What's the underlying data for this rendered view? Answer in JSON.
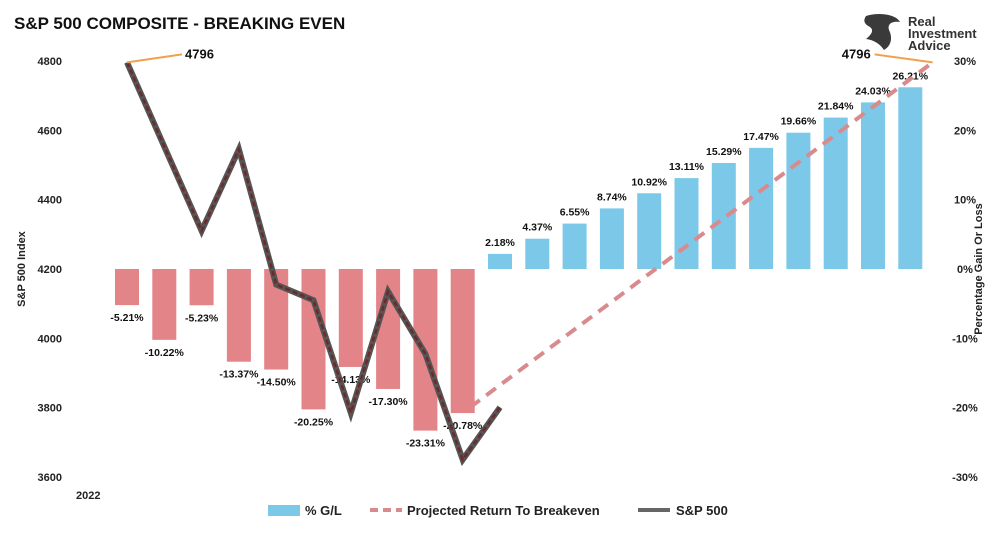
{
  "chart_data": {
    "type": "bar",
    "title": "S&P 500 COMPOSITE - BREAKING EVEN",
    "year_label": "2022",
    "y_left": {
      "label": "S&P 500 Index",
      "min": 3600,
      "max": 4800,
      "ticks": [
        3600,
        3800,
        4000,
        4200,
        4400,
        4600,
        4800
      ]
    },
    "y_right": {
      "label": "Percentage Gain Or Loss",
      "min": -30,
      "max": 30,
      "ticks": [
        -30,
        -20,
        -10,
        0,
        10,
        20,
        30
      ],
      "tick_labels": [
        "-30%",
        "-20%",
        "-10%",
        "0%",
        "10%",
        "20%",
        "30%"
      ]
    },
    "series": [
      {
        "name": "% G/L",
        "type": "bar",
        "axis": "right",
        "values": [
          -5.21,
          -10.22,
          -5.23,
          -13.37,
          -14.5,
          -20.25,
          -14.13,
          -17.3,
          -23.31,
          -20.78,
          2.18,
          4.37,
          6.55,
          8.74,
          10.92,
          13.11,
          15.29,
          17.47,
          19.66,
          21.84,
          24.03,
          26.21
        ],
        "labels": [
          "-5.21%",
          "-10.22%",
          "-5.23%",
          "-13.37%",
          "-14.50%",
          "-20.25%",
          "-14.13%",
          "-17.30%",
          "-23.31%",
          "-20.78%",
          "2.18%",
          "4.37%",
          "6.55%",
          "8.74%",
          "10.92%",
          "13.11%",
          "15.29%",
          "17.47%",
          "19.66%",
          "21.84%",
          "24.03%",
          "26.21%"
        ]
      },
      {
        "name": "Projected Return To Breakeven",
        "type": "line-dashed",
        "axis": "left",
        "points": [
          [
            9.2,
            3801
          ],
          [
            21.6,
            4796
          ]
        ]
      },
      {
        "name": "S&P 500",
        "type": "line",
        "axis": "left",
        "points": [
          [
            0,
            4796
          ],
          [
            2,
            4310
          ],
          [
            3,
            4545
          ],
          [
            4,
            4155
          ],
          [
            5,
            4110
          ],
          [
            6,
            3785
          ],
          [
            7,
            4135
          ],
          [
            8,
            3955
          ],
          [
            9,
            3650
          ],
          [
            10,
            3801
          ]
        ]
      }
    ],
    "annotations": [
      {
        "text": "4796",
        "at": "start",
        "value": 4796
      },
      {
        "text": "4796",
        "at": "end",
        "value": 4796
      }
    ],
    "legend": {
      "position": "bottom"
    },
    "colors": {
      "positive_bar": "#7bc8e8",
      "negative_bar": "#e28488",
      "projected": "#d98a8c",
      "sp500": "#555555",
      "sp500_core": "#6e2a2a",
      "callout": "#f0a050"
    }
  },
  "logo": {
    "line1": "Real",
    "line2": "Investment",
    "line3": "Advice"
  }
}
